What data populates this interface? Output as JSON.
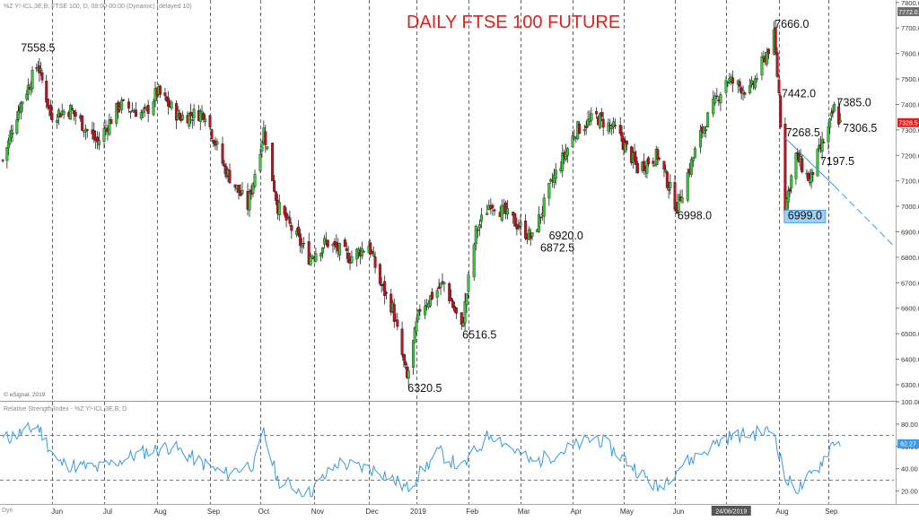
{
  "header": {
    "instrument_text": "%Z Y!-ICL,3E,B; FTSE 100, D, 08:00-00:00 (Dynamic) (delayed 10)",
    "title": "DAILY FTSE 100 FUTURE",
    "title_color": "#e0201c",
    "watermark": "© eSignal, 2019"
  },
  "rsi_panel": {
    "label": "Relative Strength Index - %Z Y!-ICL,3E,B; D",
    "ticks": [
      "100.00",
      "80.00",
      "60.00",
      "40.00",
      "20.00"
    ],
    "current_value": "62.27",
    "line_color": "#3b9ae1"
  },
  "price_tags": {
    "current_price": "7328.5",
    "top_price": "7772.0",
    "current_color": "#e01e1e",
    "top_color": "#6e6e6e"
  },
  "bottom_axis": {
    "left_text": "Dyn",
    "date_tag": "24/06/2019"
  },
  "colors": {
    "up_candle": "#37c837",
    "down_candle": "#c8101c",
    "grid": "#444444",
    "trendline": "#3b9ae1",
    "highlight_box": "#9fd0f5"
  },
  "chart_data": [
    {
      "type": "candlestick",
      "title": "DAILY FTSE 100 FUTURE",
      "x_labels": [
        "Jun",
        "Jul",
        "Aug",
        "Sep",
        "Oct",
        "Nov",
        "Dec",
        "2019",
        "Feb",
        "Mar",
        "Apr",
        "May",
        "Jun",
        "Aug",
        "Sep"
      ],
      "y_ticks": [
        7800,
        7700,
        7600,
        7500,
        7400,
        7300,
        7200,
        7100,
        7000,
        6900,
        6800,
        6700,
        6600,
        6500,
        6400,
        6300
      ],
      "ylim": [
        6240,
        7810
      ],
      "grid": "vertical dashed at month starts",
      "swing_points": [
        {
          "date": "2018-05-22",
          "label": "7558.5",
          "value": 7558.5
        },
        {
          "date": "2018-12-27",
          "label": "6320.5",
          "value": 6320.5
        },
        {
          "date": "2019-01-28",
          "label": "6516.5",
          "value": 6516.5
        },
        {
          "date": "2019-03-08",
          "label": "6872.5",
          "value": 6872.5
        },
        {
          "date": "2019-03-11",
          "label": "6920.0",
          "value": 6920.0
        },
        {
          "date": "2019-06-04",
          "label": "6998.0",
          "value": 6998.0
        },
        {
          "date": "2019-07-29",
          "label": "7666.0",
          "value": 7666.0
        },
        {
          "date": "2019-08-01",
          "label": "7442.0",
          "value": 7442.0
        },
        {
          "date": "2019-08-02",
          "label": "7268.5",
          "value": 7268.5
        },
        {
          "date": "2019-08-05",
          "label": "6999.0",
          "value": 6999.0,
          "highlighted": true
        },
        {
          "date": "2019-08-26",
          "label": "7197.5",
          "value": 7197.5
        },
        {
          "date": "2019-09-06",
          "label": "7385.0",
          "value": 7385.0
        },
        {
          "date": "2019-09-10",
          "label": "7306.5",
          "value": 7306.5
        }
      ],
      "trendline": {
        "from": {
          "date": "2019-08-05",
          "value": 7268.5
        },
        "to": {
          "date": "2019-10-15",
          "value": 6850
        },
        "style": "solid then dashed"
      },
      "last_price": 7328.5,
      "series": [
        {
          "values_approx": [
            [
              "2018-04-27",
              7180
            ],
            [
              "2018-05-08",
              7380
            ],
            [
              "2018-05-22",
              7558.5
            ],
            [
              "2018-05-31",
              7360
            ],
            [
              "2018-06-12",
              7380
            ],
            [
              "2018-06-28",
              7250
            ],
            [
              "2018-07-11",
              7400
            ],
            [
              "2018-07-25",
              7360
            ],
            [
              "2018-08-01",
              7450
            ],
            [
              "2018-08-15",
              7350
            ],
            [
              "2018-08-31",
              7370
            ],
            [
              "2018-09-11",
              7150
            ],
            [
              "2018-09-24",
              7000
            ],
            [
              "2018-10-03",
              7300
            ],
            [
              "2018-10-11",
              7000
            ],
            [
              "2018-10-29",
              6800
            ],
            [
              "2018-11-08",
              6860
            ],
            [
              "2018-11-22",
              6800
            ],
            [
              "2018-12-03",
              6850
            ],
            [
              "2018-12-10",
              6700
            ],
            [
              "2018-12-18",
              6600
            ],
            [
              "2018-12-27",
              6320.5
            ],
            [
              "2019-01-04",
              6600
            ],
            [
              "2019-01-18",
              6700
            ],
            [
              "2019-01-28",
              6516.5
            ],
            [
              "2019-02-05",
              6900
            ],
            [
              "2019-02-13",
              7020
            ],
            [
              "2019-03-08",
              6872.5
            ],
            [
              "2019-03-20",
              7100
            ],
            [
              "2019-04-03",
              7300
            ],
            [
              "2019-04-15",
              7350
            ],
            [
              "2019-04-26",
              7300
            ],
            [
              "2019-05-10",
              7150
            ],
            [
              "2019-05-23",
              7200
            ],
            [
              "2019-06-04",
              6998.0
            ],
            [
              "2019-06-18",
              7300
            ],
            [
              "2019-07-01",
              7500
            ],
            [
              "2019-07-15",
              7450
            ],
            [
              "2019-07-29",
              7666.0
            ],
            [
              "2019-08-01",
              7442.0
            ],
            [
              "2019-08-05",
              6999.0
            ],
            [
              "2019-08-12",
              7200
            ],
            [
              "2019-08-21",
              7100
            ],
            [
              "2019-08-26",
              7197.5
            ],
            [
              "2019-09-02",
              7300
            ],
            [
              "2019-09-06",
              7385.0
            ],
            [
              "2019-09-10",
              7328.5
            ]
          ]
        }
      ]
    },
    {
      "type": "line",
      "name": "Relative Strength Index",
      "ylim": [
        10,
        100
      ],
      "y_ticks": [
        100,
        80,
        60,
        40,
        20
      ],
      "reference_lines": [
        70,
        30
      ],
      "last_value": 62.27,
      "series": [
        {
          "values_approx": [
            [
              "2018-04-27",
              66
            ],
            [
              "2018-05-22",
              78
            ],
            [
              "2018-06-05",
              45
            ],
            [
              "2018-06-28",
              40
            ],
            [
              "2018-07-25",
              55
            ],
            [
              "2018-08-10",
              60
            ],
            [
              "2018-09-11",
              35
            ],
            [
              "2018-09-28",
              45
            ],
            [
              "2018-10-03",
              72
            ],
            [
              "2018-10-11",
              30
            ],
            [
              "2018-10-29",
              18
            ],
            [
              "2018-11-15",
              45
            ],
            [
              "2018-12-10",
              38
            ],
            [
              "2018-12-27",
              22
            ],
            [
              "2019-01-15",
              55
            ],
            [
              "2019-01-28",
              40
            ],
            [
              "2019-02-13",
              72
            ],
            [
              "2019-03-08",
              45
            ],
            [
              "2019-04-15",
              68
            ],
            [
              "2019-05-13",
              35
            ],
            [
              "2019-05-23",
              22
            ],
            [
              "2019-06-04",
              40
            ],
            [
              "2019-07-01",
              68
            ],
            [
              "2019-07-29",
              74
            ],
            [
              "2019-08-05",
              30
            ],
            [
              "2019-08-14",
              22
            ],
            [
              "2019-08-26",
              40
            ],
            [
              "2019-09-06",
              66
            ],
            [
              "2019-09-10",
              62.27
            ]
          ]
        }
      ]
    }
  ]
}
